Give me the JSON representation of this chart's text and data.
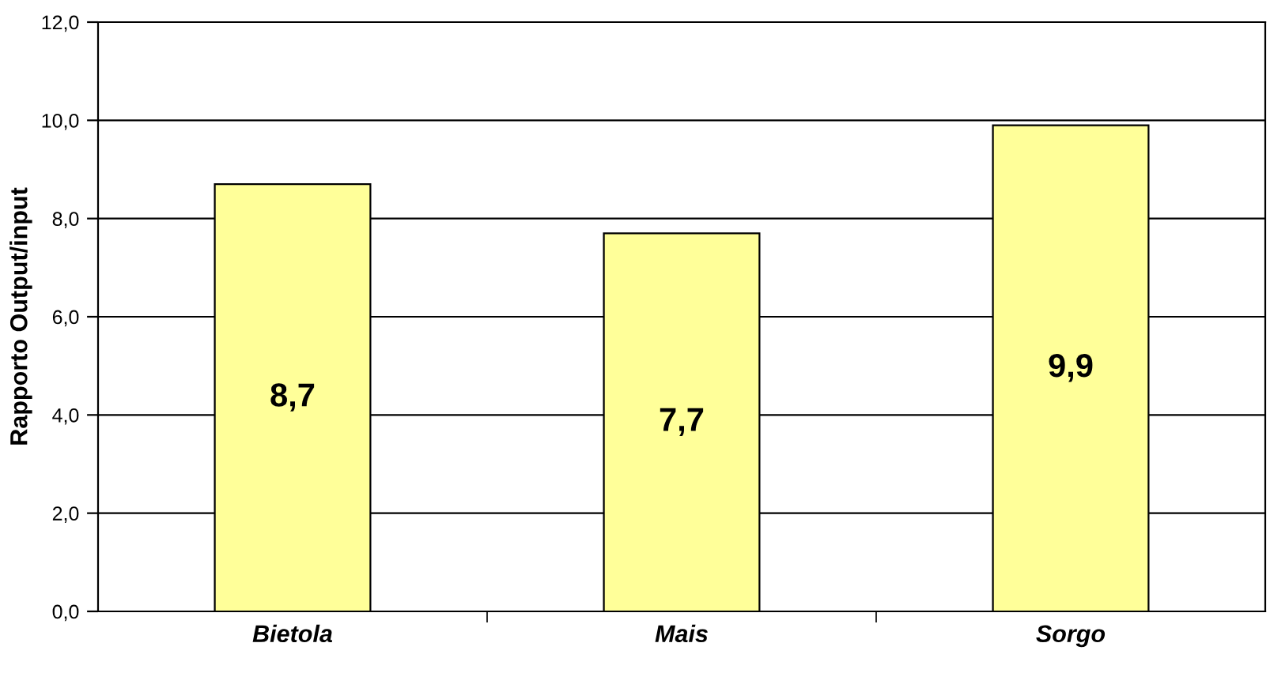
{
  "chart_data": {
    "type": "bar",
    "ylabel": "Rapporto Output/input",
    "categories": [
      "Bietola",
      "Mais",
      "Sorgo"
    ],
    "values": [
      8.7,
      7.7,
      9.9
    ],
    "value_labels": [
      "8,7",
      "7,7",
      "9,9"
    ],
    "color": "#ffff99",
    "ylim": [
      0,
      12
    ],
    "yticks": [
      {
        "value": 0,
        "label": "0,0"
      },
      {
        "value": 2,
        "label": "2,0"
      },
      {
        "value": 4,
        "label": "4,0"
      },
      {
        "value": 6,
        "label": "6,0"
      },
      {
        "value": 8,
        "label": "8,0"
      },
      {
        "value": 10,
        "label": "10,0"
      },
      {
        "value": 12,
        "label": "12,0"
      }
    ],
    "grid": "y",
    "legend": false
  }
}
